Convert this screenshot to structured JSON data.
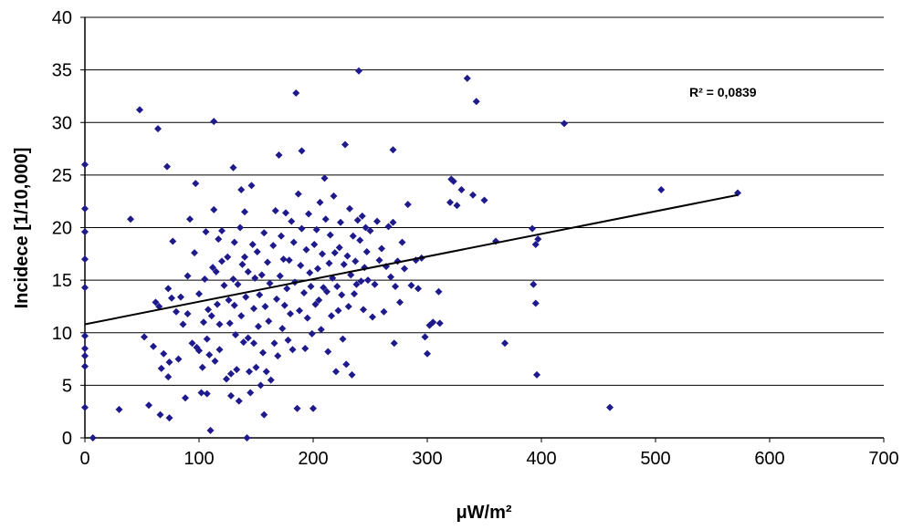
{
  "chart_data": {
    "type": "scatter",
    "xlabel": "μW/m²",
    "ylabel": "Incidece [1/10,000]",
    "xlim": [
      0,
      700
    ],
    "ylim": [
      0,
      40
    ],
    "xticks": [
      0,
      100,
      200,
      300,
      400,
      500,
      600,
      700
    ],
    "yticks": [
      0,
      5,
      10,
      15,
      20,
      25,
      30,
      35,
      40
    ],
    "grid": "horizontal",
    "legend": "none",
    "annotation": "R² = 0,0839",
    "marker_color": "#1f1a8c",
    "trendline": {
      "type": "linear",
      "x": [
        0,
        572
      ],
      "y": [
        10.8,
        23.1
      ]
    },
    "series": [
      {
        "points": [
          [
            0,
            26.0
          ],
          [
            0,
            21.8
          ],
          [
            0,
            19.6
          ],
          [
            0,
            17.0
          ],
          [
            0,
            14.3
          ],
          [
            0,
            9.7
          ],
          [
            0,
            8.5
          ],
          [
            0,
            7.8
          ],
          [
            0,
            6.8
          ],
          [
            0,
            2.9
          ],
          [
            7,
            0.0
          ],
          [
            30,
            2.7
          ],
          [
            40,
            20.8
          ],
          [
            48,
            31.2
          ],
          [
            52,
            9.6
          ],
          [
            56,
            3.1
          ],
          [
            60,
            8.7
          ],
          [
            62,
            12.9
          ],
          [
            64,
            29.4
          ],
          [
            65,
            12.5
          ],
          [
            66,
            2.2
          ],
          [
            67,
            6.6
          ],
          [
            69,
            8.0
          ],
          [
            72,
            25.8
          ],
          [
            73,
            14.2
          ],
          [
            73,
            5.8
          ],
          [
            74,
            1.9
          ],
          [
            74,
            7.2
          ],
          [
            76,
            13.3
          ],
          [
            77,
            18.7
          ],
          [
            80,
            12.0
          ],
          [
            82,
            7.5
          ],
          [
            84,
            13.4
          ],
          [
            86,
            10.8
          ],
          [
            88,
            3.8
          ],
          [
            90,
            15.4
          ],
          [
            90,
            11.8
          ],
          [
            92,
            20.8
          ],
          [
            94,
            9.0
          ],
          [
            96,
            17.6
          ],
          [
            97,
            24.2
          ],
          [
            98,
            8.6
          ],
          [
            100,
            13.7
          ],
          [
            100,
            8.3
          ],
          [
            102,
            4.3
          ],
          [
            103,
            6.7
          ],
          [
            104,
            11.0
          ],
          [
            105,
            15.1
          ],
          [
            106,
            19.6
          ],
          [
            107,
            9.4
          ],
          [
            107,
            4.2
          ],
          [
            108,
            12.2
          ],
          [
            109,
            7.9
          ],
          [
            110,
            0.7
          ],
          [
            111,
            11.6
          ],
          [
            112,
            16.2
          ],
          [
            113,
            30.1
          ],
          [
            113,
            21.7
          ],
          [
            114,
            7.3
          ],
          [
            115,
            15.8
          ],
          [
            116,
            12.7
          ],
          [
            117,
            18.9
          ],
          [
            118,
            10.8
          ],
          [
            118,
            8.4
          ],
          [
            120,
            19.7
          ],
          [
            120,
            16.8
          ],
          [
            122,
            14.5
          ],
          [
            124,
            5.6
          ],
          [
            125,
            17.2
          ],
          [
            126,
            13.1
          ],
          [
            127,
            10.9
          ],
          [
            128,
            6.1
          ],
          [
            128,
            4.0
          ],
          [
            130,
            25.7
          ],
          [
            130,
            15.1
          ],
          [
            131,
            18.6
          ],
          [
            131,
            12.6
          ],
          [
            132,
            9.8
          ],
          [
            133,
            6.5
          ],
          [
            134,
            14.6
          ],
          [
            135,
            3.5
          ],
          [
            136,
            20.0
          ],
          [
            137,
            23.6
          ],
          [
            137,
            11.6
          ],
          [
            138,
            16.5
          ],
          [
            139,
            9.1
          ],
          [
            140,
            21.5
          ],
          [
            140,
            17.2
          ],
          [
            141,
            13.4
          ],
          [
            142,
            0.0
          ],
          [
            143,
            15.8
          ],
          [
            143,
            9.5
          ],
          [
            144,
            6.3
          ],
          [
            145,
            4.3
          ],
          [
            146,
            24.0
          ],
          [
            147,
            18.4
          ],
          [
            148,
            12.3
          ],
          [
            148,
            9.0
          ],
          [
            149,
            15.2
          ],
          [
            150,
            6.7
          ],
          [
            151,
            17.7
          ],
          [
            152,
            10.6
          ],
          [
            153,
            13.6
          ],
          [
            154,
            5.0
          ],
          [
            155,
            15.5
          ],
          [
            156,
            8.1
          ],
          [
            157,
            19.5
          ],
          [
            157,
            2.2
          ],
          [
            158,
            12.5
          ],
          [
            159,
            6.3
          ],
          [
            160,
            16.7
          ],
          [
            161,
            11.1
          ],
          [
            162,
            14.7
          ],
          [
            163,
            5.5
          ],
          [
            165,
            18.3
          ],
          [
            166,
            9.0
          ],
          [
            167,
            21.6
          ],
          [
            168,
            13.2
          ],
          [
            169,
            7.8
          ],
          [
            170,
            26.9
          ],
          [
            171,
            15.4
          ],
          [
            172,
            19.2
          ],
          [
            173,
            10.4
          ],
          [
            174,
            17.0
          ],
          [
            175,
            12.6
          ],
          [
            176,
            21.4
          ],
          [
            177,
            14.2
          ],
          [
            178,
            9.3
          ],
          [
            179,
            16.9
          ],
          [
            180,
            11.8
          ],
          [
            181,
            20.6
          ],
          [
            182,
            8.4
          ],
          [
            183,
            18.6
          ],
          [
            184,
            14.8
          ],
          [
            185,
            32.8
          ],
          [
            186,
            2.8
          ],
          [
            187,
            23.2
          ],
          [
            188,
            12.1
          ],
          [
            189,
            16.4
          ],
          [
            190,
            27.3
          ],
          [
            190,
            19.9
          ],
          [
            192,
            13.8
          ],
          [
            193,
            8.5
          ],
          [
            194,
            17.9
          ],
          [
            195,
            11.4
          ],
          [
            196,
            21.3
          ],
          [
            197,
            15.7
          ],
          [
            198,
            14.4
          ],
          [
            199,
            9.9
          ],
          [
            200,
            2.8
          ],
          [
            201,
            18.4
          ],
          [
            202,
            12.7
          ],
          [
            203,
            19.8
          ],
          [
            204,
            16.1
          ],
          [
            205,
            13.1
          ],
          [
            206,
            22.4
          ],
          [
            207,
            10.3
          ],
          [
            208,
            17.5
          ],
          [
            209,
            14.3
          ],
          [
            210,
            24.7
          ],
          [
            211,
            20.8
          ],
          [
            212,
            13.9
          ],
          [
            213,
            8.2
          ],
          [
            214,
            16.6
          ],
          [
            215,
            19.3
          ],
          [
            216,
            11.6
          ],
          [
            217,
            15.2
          ],
          [
            218,
            23.0
          ],
          [
            219,
            17.6
          ],
          [
            220,
            6.3
          ],
          [
            221,
            14.4
          ],
          [
            222,
            12.1
          ],
          [
            223,
            18.1
          ],
          [
            224,
            20.5
          ],
          [
            225,
            13.6
          ],
          [
            226,
            9.4
          ],
          [
            227,
            16.5
          ],
          [
            228,
            27.9
          ],
          [
            229,
            7.0
          ],
          [
            230,
            17.3
          ],
          [
            231,
            12.5
          ],
          [
            232,
            21.8
          ],
          [
            233,
            15.5
          ],
          [
            234,
            6.0
          ],
          [
            235,
            19.2
          ],
          [
            236,
            13.7
          ],
          [
            237,
            16.8
          ],
          [
            238,
            14.6
          ],
          [
            239,
            20.7
          ],
          [
            240,
            34.9
          ],
          [
            241,
            18.8
          ],
          [
            242,
            14.9
          ],
          [
            243,
            21.1
          ],
          [
            244,
            12.2
          ],
          [
            245,
            16.2
          ],
          [
            246,
            20.0
          ],
          [
            247,
            17.7
          ],
          [
            248,
            15.0
          ],
          [
            250,
            19.7
          ],
          [
            252,
            11.5
          ],
          [
            254,
            14.6
          ],
          [
            256,
            20.6
          ],
          [
            258,
            16.9
          ],
          [
            260,
            18.0
          ],
          [
            262,
            12.0
          ],
          [
            264,
            16.3
          ],
          [
            266,
            20.1
          ],
          [
            268,
            15.3
          ],
          [
            270,
            27.4
          ],
          [
            270,
            20.5
          ],
          [
            271,
            9.0
          ],
          [
            272,
            14.4
          ],
          [
            274,
            16.8
          ],
          [
            276,
            12.9
          ],
          [
            278,
            18.6
          ],
          [
            280,
            16.1
          ],
          [
            283,
            22.2
          ],
          [
            286,
            14.5
          ],
          [
            290,
            16.9
          ],
          [
            292,
            14.2
          ],
          [
            295,
            17.1
          ],
          [
            298,
            9.6
          ],
          [
            300,
            8.0
          ],
          [
            302,
            10.7
          ],
          [
            305,
            11.0
          ],
          [
            310,
            13.9
          ],
          [
            311,
            10.9
          ],
          [
            320,
            22.4
          ],
          [
            321,
            24.6
          ],
          [
            323,
            24.4
          ],
          [
            326,
            22.1
          ],
          [
            330,
            23.6
          ],
          [
            335,
            34.2
          ],
          [
            340,
            23.1
          ],
          [
            343,
            32.0
          ],
          [
            350,
            22.6
          ],
          [
            360,
            18.7
          ],
          [
            368,
            9.0
          ],
          [
            392,
            19.9
          ],
          [
            393,
            14.6
          ],
          [
            395,
            18.4
          ],
          [
            395,
            12.8
          ],
          [
            396,
            6.0
          ],
          [
            397,
            18.9
          ],
          [
            420,
            29.9
          ],
          [
            460,
            2.9
          ],
          [
            505,
            23.6
          ],
          [
            572,
            23.3
          ]
        ]
      }
    ]
  }
}
